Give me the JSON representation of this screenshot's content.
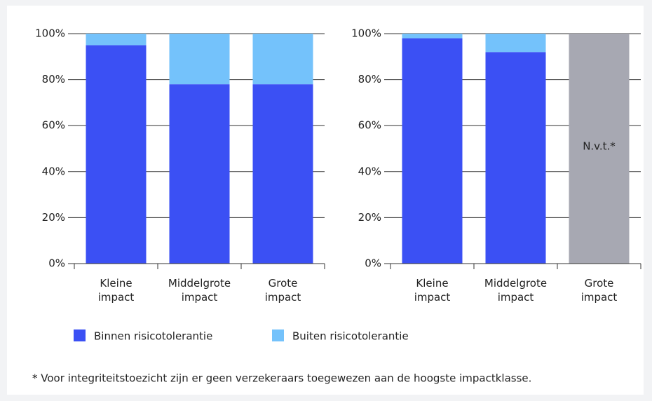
{
  "chart_data": [
    {
      "type": "bar",
      "stacked": true,
      "categories": [
        "Kleine impact",
        "Middelgrote impact",
        "Grote impact"
      ],
      "series": [
        {
          "name": "Binnen risicotolerantie",
          "color": "#3b50f4",
          "values": [
            95,
            78,
            78
          ]
        },
        {
          "name": "Buiten risicotolerantie",
          "color": "#74c2fb",
          "values": [
            5,
            22,
            22
          ]
        }
      ],
      "ylim": [
        0,
        100
      ],
      "yticks": [
        {
          "value": 0,
          "label": "0%"
        },
        {
          "value": 20,
          "label": "20%"
        },
        {
          "value": 40,
          "label": "40%"
        },
        {
          "value": 60,
          "label": "60%"
        },
        {
          "value": 80,
          "label": "80%"
        },
        {
          "value": 100,
          "label": "100%"
        }
      ],
      "grid": true
    },
    {
      "type": "bar",
      "stacked": true,
      "categories": [
        "Kleine impact",
        "Middelgrote impact",
        "Grote impact"
      ],
      "series": [
        {
          "color": "#3b50f4",
          "values": [
            98,
            92,
            null
          ]
        },
        {
          "color": "#74c2fb",
          "values": [
            2,
            8,
            null
          ]
        }
      ],
      "ylim": [
        0,
        100
      ],
      "yticks": [
        {
          "value": 0,
          "label": "0%"
        },
        {
          "value": 20,
          "label": "20%"
        },
        {
          "value": 40,
          "label": "40%"
        },
        {
          "value": 60,
          "label": "60%"
        },
        {
          "value": 80,
          "label": "80%"
        },
        {
          "value": 100,
          "label": "100%"
        }
      ],
      "grid": true,
      "annotations": [
        {
          "category": "Grote impact",
          "text": "N.v.t.*",
          "color": "#a7a8b2"
        }
      ]
    }
  ],
  "footnote": "* Voor integriteitstoezicht zijn er geen verzekeraars toegewezen aan de hoogste impactklasse."
}
